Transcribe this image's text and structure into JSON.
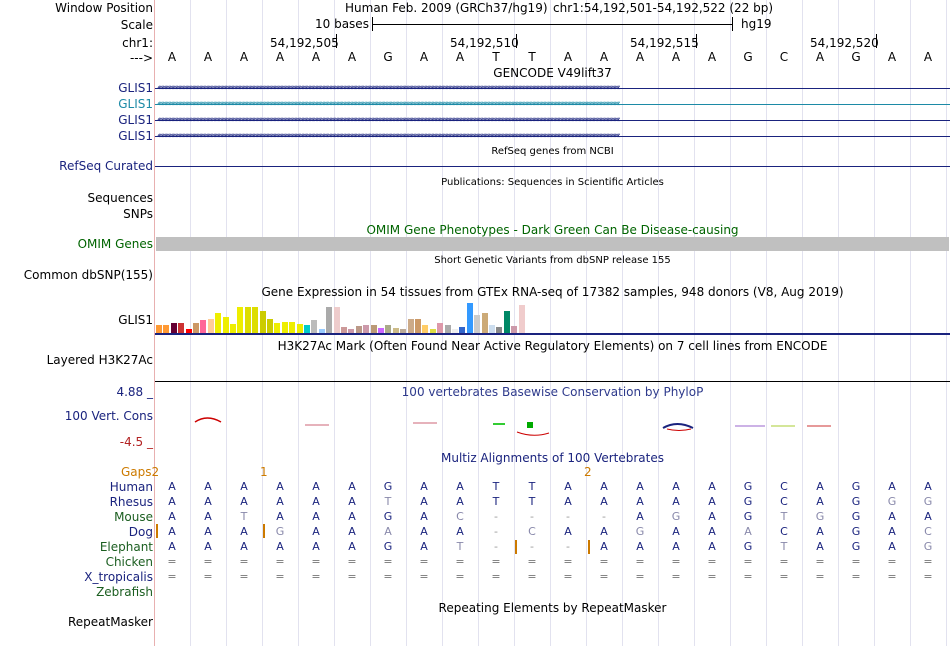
{
  "header": {
    "window_position_label": "Window Position",
    "assembly": "Human Feb. 2009 (GRCh37/hg19)",
    "position": "chr1:54,192,501-54,192,522 (22 bp)",
    "scale_label": "Scale",
    "scale_text": "10 bases",
    "assembly_id": "hg19",
    "chrom_label": "chr1:",
    "strand_label": "--->",
    "coords": [
      "54,192,505",
      "54,192,510",
      "54,192,515",
      "54,192,520"
    ]
  },
  "bases": [
    "A",
    "A",
    "A",
    "A",
    "A",
    "A",
    "G",
    "A",
    "A",
    "T",
    "T",
    "A",
    "A",
    "A",
    "A",
    "A",
    "G",
    "C",
    "A",
    "G",
    "A",
    "A"
  ],
  "tracks": {
    "gencode_title": "GENCODE V49lift37",
    "gencode_genes": [
      {
        "label": "GLIS1",
        "color": "#1a237e"
      },
      {
        "label": "GLIS1",
        "color": "#1c8aa6"
      },
      {
        "label": "GLIS1",
        "color": "#1a237e"
      },
      {
        "label": "GLIS1",
        "color": "#1a237e"
      }
    ],
    "refseq_label": "RefSeq Curated",
    "refseq_title": "RefSeq genes from NCBI",
    "publications_title": "Publications: Sequences in Scientific Articles",
    "sequences_label": "Sequences",
    "snps_label": "SNPs",
    "omim_title": "OMIM Gene Phenotypes - Dark Green Can Be Disease-causing",
    "omim_label": "OMIM Genes",
    "dbsnp_title": "Short Genetic Variants from dbSNP release 155",
    "dbsnp_label": "Common dbSNP(155)",
    "gtex_title": "Gene Expression in 54 tissues from GTEx RNA-seq of 17382 samples, 948 donors (V8, Aug 2019)",
    "gtex_label": "GLIS1",
    "h3k27_title": "H3K27Ac Mark (Often Found Near Active Regulatory Elements) on 7 cell lines from ENCODE",
    "h3k27_label": "Layered H3K27Ac",
    "cons_title": "100 vertebrates Basewise Conservation by PhyloP",
    "cons_max": "4.88 _",
    "cons_min": "-4.5 _",
    "cons_label": "100 Vert. Cons",
    "multiz_title": "Multiz Alignments of 100 Vertebrates",
    "gaps_label": "Gaps",
    "gap_counts": [
      "2",
      "1",
      "2"
    ],
    "repeat_title": "Repeating Elements by RepeatMasker",
    "repeat_label": "RepeatMasker"
  },
  "species": [
    {
      "name": "Human",
      "color": "#1a237e",
      "seq": [
        "A",
        "A",
        "A",
        "A",
        "A",
        "A",
        "G",
        "A",
        "A",
        "T",
        "T",
        "A",
        "A",
        "A",
        "A",
        "A",
        "G",
        "C",
        "A",
        "G",
        "A",
        "A"
      ]
    },
    {
      "name": "Rhesus",
      "color": "#1a237e",
      "seq": [
        "A",
        "A",
        "A",
        "A",
        "A",
        "A",
        "T",
        "A",
        "A",
        "T",
        "T",
        "A",
        "A",
        "A",
        "A",
        "A",
        "G",
        "C",
        "A",
        "G",
        "G",
        "G"
      ]
    },
    {
      "name": "Mouse",
      "color": "#1b5e20",
      "seq": [
        "A",
        "A",
        "T",
        "A",
        "A",
        "A",
        "G",
        "A",
        "C",
        "-",
        "-",
        "-",
        "-",
        "A",
        "G",
        "A",
        "G",
        "T",
        "G",
        "G",
        "A",
        "A"
      ]
    },
    {
      "name": "Dog",
      "color": "#1a237e",
      "seq": [
        "A",
        "A",
        "A",
        "G",
        "A",
        "A",
        "A",
        "A",
        "A",
        "-",
        "C",
        "A",
        "A",
        "G",
        "A",
        "A",
        "A",
        "C",
        "A",
        "G",
        "A",
        "C"
      ]
    },
    {
      "name": "Elephant",
      "color": "#1b5e20",
      "seq": [
        "A",
        "A",
        "A",
        "A",
        "A",
        "A",
        "G",
        "A",
        "T",
        "-",
        "-",
        "-",
        "A",
        "A",
        "A",
        "A",
        "G",
        "T",
        "A",
        "G",
        "A",
        "G"
      ]
    },
    {
      "name": "Chicken",
      "color": "#1b5e20",
      "seq": [
        "=",
        "=",
        "=",
        "=",
        "=",
        "=",
        "=",
        "=",
        "=",
        "=",
        "=",
        "=",
        "=",
        "=",
        "=",
        "=",
        "=",
        "=",
        "=",
        "=",
        "=",
        "="
      ]
    },
    {
      "name": "X_tropicalis",
      "color": "#1a237e",
      "seq": [
        "=",
        "=",
        "=",
        "=",
        "=",
        "=",
        "=",
        "=",
        "=",
        "=",
        "=",
        "=",
        "=",
        "=",
        "=",
        "=",
        "=",
        "=",
        "=",
        "=",
        "=",
        "="
      ]
    },
    {
      "name": "Zebrafish",
      "color": "#1b5e20",
      "seq": []
    }
  ],
  "gtex_values": [
    8,
    8,
    10,
    10,
    4,
    10,
    13,
    14,
    20,
    16,
    9,
    26,
    26,
    26,
    22,
    14,
    10,
    11,
    11,
    9,
    8,
    13,
    4,
    26,
    26,
    6,
    4,
    7,
    8,
    8,
    5,
    8,
    5,
    4,
    14,
    14,
    8,
    4,
    10,
    8,
    4,
    6,
    30,
    18,
    20,
    8,
    6,
    22,
    7,
    28
  ],
  "gtex_colors": [
    "#ff9933",
    "#ff9933",
    "#660033",
    "#cc3333",
    "#ff0000",
    "#cc9966",
    "#ff6699",
    "#ffcc99",
    "#eeee00",
    "#eeee00",
    "#eeee00",
    "#eeee00",
    "#dddd00",
    "#dddd00",
    "#cccc00",
    "#cccc00",
    "#eeee00",
    "#eeee00",
    "#eeee00",
    "#eeee00",
    "#00cccc",
    "#bbbbbb",
    "#99ccff",
    "#aaaaaa",
    "#eecccc",
    "#cc9999",
    "#cc99aa",
    "#bb9988",
    "#cc99aa",
    "#bb9977",
    "#cc66ff",
    "#aaaa88",
    "#ccbb88",
    "#bbaa99",
    "#ccaa88",
    "#cc9966",
    "#ffcc66",
    "#dddd44",
    "#dd99aa",
    "#aaaaaa",
    "#eeeeee",
    "#3366cc",
    "#3399ff",
    "#cccccc",
    "#ccaa77",
    "#ccddee",
    "#888888",
    "#008866",
    "#cc99aa",
    "#f0cccc"
  ],
  "colors": {
    "label_blue": "#1a237e",
    "label_green": "#006400",
    "gap_orange": "#cc7a00",
    "omim_bar": "#c0c0c0",
    "cons_red": "#b22222",
    "cons_blue": "#1a237e"
  }
}
